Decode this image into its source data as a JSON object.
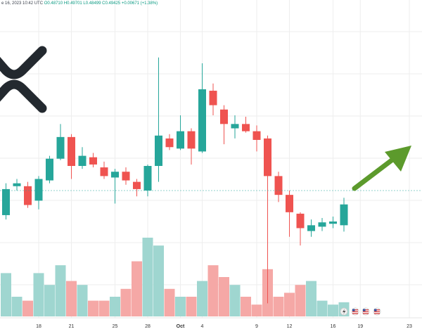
{
  "header": {
    "date_text": "e 16, 2023 10:42 UTC",
    "ohlc_text": "O0.48710  H0.49701  L0.48499  C0.49425  +0.00671 (+1.38%)"
  },
  "colors": {
    "up": "#26a69a",
    "down": "#ef5350",
    "up_volume": "#9fd6d0",
    "down_volume": "#f5a8a6",
    "arrow": "#5c9a2c",
    "grid": "#eeeeee",
    "axis_text": "#333333",
    "logo": "#23292f"
  },
  "icons": [
    "xrp-logo-icon",
    "arrow-up-right-icon",
    "flash-icon",
    "us-flag-icon"
  ],
  "chart_data": {
    "type": "candlestick",
    "title": "",
    "x_axis_ticks": [
      {
        "label": "18",
        "index": 3
      },
      {
        "label": "21",
        "index": 6
      },
      {
        "label": "25",
        "index": 10
      },
      {
        "label": "28",
        "index": 13
      },
      {
        "label": "Oct",
        "index": 16
      },
      {
        "label": "4",
        "index": 18
      },
      {
        "label": "9",
        "index": 23
      },
      {
        "label": "12",
        "index": 26
      },
      {
        "label": "16",
        "index": 30
      },
      {
        "label": "19",
        "index": 32.5
      },
      {
        "label": "23",
        "index": 37
      }
    ],
    "y_range": [
      0.455,
      0.56
    ],
    "grid": true,
    "legend": "none",
    "series": [
      {
        "open": 0.4905,
        "close": 0.4995,
        "high": 0.5015,
        "low": 0.489,
        "volume": 0.55
      },
      {
        "open": 0.5005,
        "close": 0.5015,
        "high": 0.503,
        "low": 0.499,
        "volume": 0.25
      },
      {
        "open": 0.5005,
        "close": 0.494,
        "high": 0.502,
        "low": 0.493,
        "volume": 0.2
      },
      {
        "open": 0.4955,
        "close": 0.503,
        "high": 0.504,
        "low": 0.4925,
        "volume": 0.55
      },
      {
        "open": 0.5025,
        "close": 0.51,
        "high": 0.511,
        "low": 0.5015,
        "volume": 0.4
      },
      {
        "open": 0.51,
        "close": 0.5175,
        "high": 0.522,
        "low": 0.5095,
        "volume": 0.65
      },
      {
        "open": 0.5175,
        "close": 0.5075,
        "high": 0.5185,
        "low": 0.503,
        "volume": 0.45
      },
      {
        "open": 0.5075,
        "close": 0.511,
        "high": 0.514,
        "low": 0.5065,
        "volume": 0.4
      },
      {
        "open": 0.5105,
        "close": 0.508,
        "high": 0.512,
        "low": 0.507,
        "volume": 0.2
      },
      {
        "open": 0.507,
        "close": 0.504,
        "high": 0.509,
        "low": 0.503,
        "volume": 0.2
      },
      {
        "open": 0.5035,
        "close": 0.5055,
        "high": 0.5065,
        "low": 0.4945,
        "volume": 0.25
      },
      {
        "open": 0.5055,
        "close": 0.5025,
        "high": 0.507,
        "low": 0.501,
        "volume": 0.35
      },
      {
        "open": 0.502,
        "close": 0.4995,
        "high": 0.503,
        "low": 0.497,
        "volume": 0.7
      },
      {
        "open": 0.499,
        "close": 0.5075,
        "high": 0.508,
        "low": 0.497,
        "volume": 1.0
      },
      {
        "open": 0.5075,
        "close": 0.518,
        "high": 0.545,
        "low": 0.502,
        "volume": 0.9
      },
      {
        "open": 0.517,
        "close": 0.514,
        "high": 0.5185,
        "low": 0.513,
        "volume": 0.35
      },
      {
        "open": 0.5135,
        "close": 0.5195,
        "high": 0.525,
        "low": 0.513,
        "volume": 0.25
      },
      {
        "open": 0.5195,
        "close": 0.5135,
        "high": 0.5205,
        "low": 0.508,
        "volume": 0.25
      },
      {
        "open": 0.5125,
        "close": 0.534,
        "high": 0.543,
        "low": 0.512,
        "volume": 0.45
      },
      {
        "open": 0.5335,
        "close": 0.5285,
        "high": 0.536,
        "low": 0.525,
        "volume": 0.65
      },
      {
        "open": 0.527,
        "close": 0.522,
        "high": 0.5285,
        "low": 0.515,
        "volume": 0.5
      },
      {
        "open": 0.5205,
        "close": 0.522,
        "high": 0.525,
        "low": 0.517,
        "volume": 0.4
      },
      {
        "open": 0.522,
        "close": 0.5195,
        "high": 0.5245,
        "low": 0.519,
        "volume": 0.25
      },
      {
        "open": 0.5195,
        "close": 0.5165,
        "high": 0.5215,
        "low": 0.5125,
        "volume": 0.15
      },
      {
        "open": 0.517,
        "close": 0.504,
        "high": 0.518,
        "low": 0.46,
        "volume": 0.6
      },
      {
        "open": 0.504,
        "close": 0.4975,
        "high": 0.5055,
        "low": 0.495,
        "volume": 0.25
      },
      {
        "open": 0.4975,
        "close": 0.4915,
        "high": 0.499,
        "low": 0.483,
        "volume": 0.3
      },
      {
        "open": 0.491,
        "close": 0.486,
        "high": 0.4915,
        "low": 0.48,
        "volume": 0.4
      },
      {
        "open": 0.485,
        "close": 0.487,
        "high": 0.489,
        "low": 0.483,
        "volume": 0.45
      },
      {
        "open": 0.4865,
        "close": 0.488,
        "high": 0.4895,
        "low": 0.485,
        "volume": 0.2
      },
      {
        "open": 0.4875,
        "close": 0.4883,
        "high": 0.49,
        "low": 0.486,
        "volume": 0.15
      },
      {
        "open": 0.487,
        "close": 0.4942,
        "high": 0.4965,
        "low": 0.4848,
        "volume": 0.18
      }
    ]
  }
}
